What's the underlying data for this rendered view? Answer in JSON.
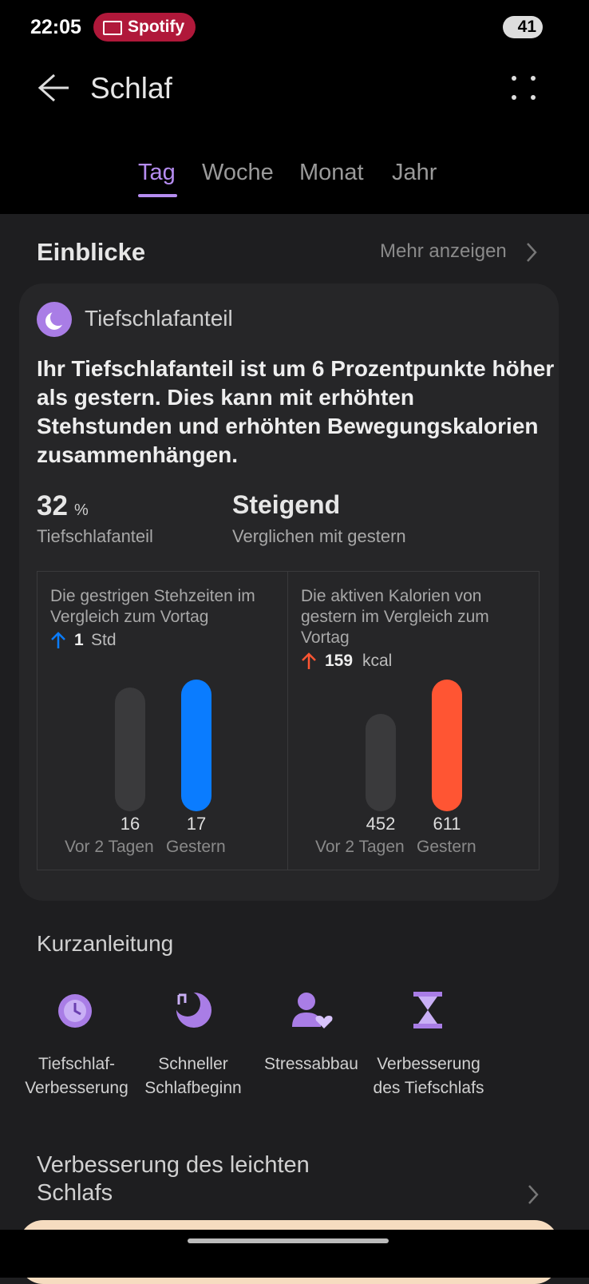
{
  "status_bar": {
    "time": "22:05",
    "app": "Spotify",
    "battery": "41"
  },
  "header": {
    "title": "Schlaf"
  },
  "tabs": [
    "Tag",
    "Woche",
    "Monat",
    "Jahr"
  ],
  "insights": {
    "title": "Einblicke",
    "more": "Mehr anzeigen",
    "card": {
      "title": "Tiefschlafanteil",
      "text": "Ihr Tiefschlafanteil ist um 6 Prozentpunkte höher als gestern. Dies kann mit erhöhten Stehstunden und erhöhten Bewegungskalorien zusammenhängen.",
      "metrics": [
        {
          "value": 32,
          "unit": "%",
          "label": "Tiefschlafanteil"
        },
        {
          "value": "Steigend",
          "label": "Verglichen mit gestern"
        }
      ],
      "panels": [
        {
          "title": "Die gestrigen Stehzeiten im Vergleich zum Vortag",
          "change": 1,
          "unit": "Std",
          "color": "#0a7cff",
          "bars": [
            {
              "label": "Vor 2 Tagen",
              "value": 16,
              "color": "#3a3a3c"
            },
            {
              "label": "Gestern",
              "value": 17,
              "color": "#0a7cff"
            }
          ]
        },
        {
          "title": "Die aktiven Kalorien von gestern im Vergleich zum Vortag",
          "change": 159,
          "unit": "kcal",
          "color": "#ff5533",
          "bars": [
            {
              "label": "Vor 2 Tagen",
              "value": 452,
              "color": "#3a3a3c"
            },
            {
              "label": "Gestern",
              "value": 611,
              "color": "#ff5533"
            }
          ]
        }
      ]
    }
  },
  "guide": {
    "title": "Kurzanleitung",
    "items": [
      "Tiefschlaf-Verbesserung",
      "Schneller Schlafbeginn",
      "Stressabbau",
      "Verbesserung des Tiefschlafs"
    ]
  },
  "section": {
    "title": "Verbesserung des leichten Schlafs"
  }
}
